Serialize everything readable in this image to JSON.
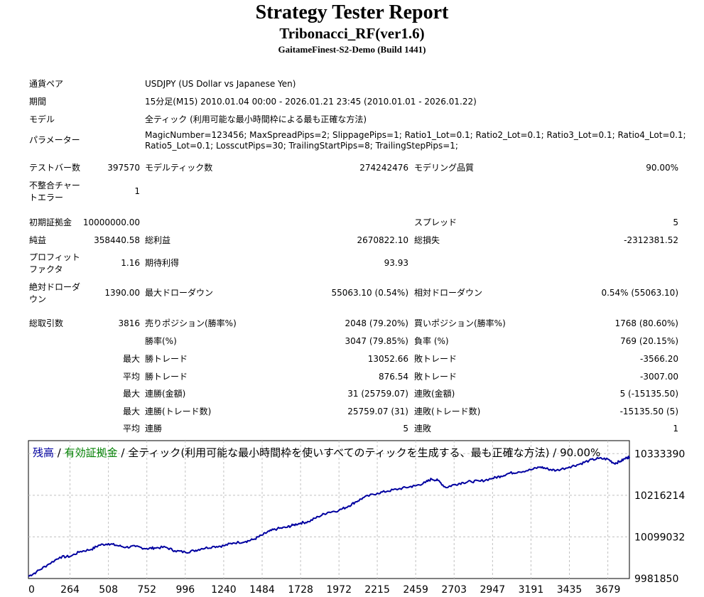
{
  "header": {
    "title": "Strategy Tester Report",
    "subtitle": "Tribonacci_RF(ver1.6)",
    "broker": "GaitameFinest-S2-Demo (Build 1441)"
  },
  "info": {
    "currency_label": "通貨ペア",
    "currency_value": "USDJPY (US Dollar vs Japanese Yen)",
    "period_label": "期間",
    "period_value": "15分足(M15) 2010.01.04 00:00 - 2026.01.21 23:45 (2010.01.01 - 2026.01.22)",
    "model_label": "モデル",
    "model_value": "全ティック (利用可能な最小時間枠による最も正確な方法)",
    "params_label": "パラメーター",
    "params_line1": "MagicNumber=123456; MaxSpreadPips=2; SlippagePips=1; Ratio1_Lot=0.1; Ratio2_Lot=0.1; Ratio3_Lot=0.1; Ratio4_Lot=0.1;",
    "params_line2": "Ratio5_Lot=0.1; LosscutPips=30; TrailingStartPips=8; TrailingStepPips=1;"
  },
  "stats": {
    "bars_label": "テストバー数",
    "bars_value": "397570",
    "ticks_label": "モデルティック数",
    "ticks_value": "274242476",
    "quality_label": "モデリング品質",
    "quality_value": "90.00%",
    "mismatch_label_1": "不整合チャー",
    "mismatch_label_2": "トエラー",
    "mismatch_value": "1",
    "deposit_label": "初期証拠金",
    "deposit_value": "10000000.00",
    "spread_label": "スプレッド",
    "spread_value": "5",
    "net_label": "純益",
    "net_value": "358440.58",
    "gross_profit_label": "総利益",
    "gross_profit_value": "2670822.10",
    "gross_loss_label": "総損失",
    "gross_loss_value": "-2312381.52",
    "pf_label_1": "プロフィット",
    "pf_label_2": "ファクタ",
    "pf_value": "1.16",
    "expected_label": "期待利得",
    "expected_value": "93.93",
    "abs_dd_label_1": "絶対ドローダ",
    "abs_dd_label_2": "ウン",
    "abs_dd_value": "1390.00",
    "max_dd_label": "最大ドローダウン",
    "max_dd_value": "55063.10 (0.54%)",
    "rel_dd_label": "相対ドローダウン",
    "rel_dd_value": "0.54% (55063.10)",
    "trades_label": "総取引数",
    "trades_value": "3816",
    "short_label": "売りポジション(勝率%)",
    "short_value": "2048 (79.20%)",
    "long_label": "買いポジション(勝率%)",
    "long_value": "1768 (80.60%)",
    "win_rate_label": "勝率(%)",
    "win_rate_value": "3047 (79.85%)",
    "loss_rate_label": "負率 (%)",
    "loss_rate_value": "769 (20.15%)",
    "max_label": "最大",
    "avg_label": "平均",
    "largest_win_label": "勝トレード",
    "largest_win_value": "13052.66",
    "largest_loss_label": "敗トレード",
    "largest_loss_value": "-3566.20",
    "avg_win_label": "勝トレード",
    "avg_win_value": "876.54",
    "avg_loss_label": "敗トレード",
    "avg_loss_value": "-3007.00",
    "max_cons_wins_label": "連勝(金額)",
    "max_cons_wins_value": "31 (25759.07)",
    "max_cons_losses_label": "連敗(金額)",
    "max_cons_losses_value": "5 (-15135.50)",
    "max_cons_profit_label": "連勝(トレード数)",
    "max_cons_profit_value": "25759.07 (31)",
    "max_cons_loss_label": "連敗(トレード数)",
    "max_cons_loss_value": "-15135.50 (5)",
    "avg_cons_wins_label": "連勝",
    "avg_cons_wins_value": "5",
    "avg_cons_losses_label": "連敗",
    "avg_cons_losses_value": "1"
  },
  "chart_legend": {
    "balance": "残高",
    "sep1": " / ",
    "equity": "有効証拠金",
    "rest": " / 全ティック(利用可能な最小時間枠を使いすべてのティックを生成する、最も正確な方法) / 90.00%"
  },
  "colors": {
    "balance": "#0000a0",
    "equity": "#008000",
    "grid": "#c0c0c0"
  },
  "chart_data": {
    "type": "line",
    "title": "",
    "xlabel": "",
    "ylabel": "",
    "x_ticks": [
      "0",
      "264",
      "508",
      "752",
      "996",
      "1240",
      "1484",
      "1728",
      "1972",
      "2215",
      "2459",
      "2703",
      "2947",
      "3191",
      "3435",
      "3679"
    ],
    "y_ticks": [
      "10333390",
      "10216214",
      "10099032",
      "9981850"
    ],
    "y_tick_values": [
      10333390,
      10216214,
      10099032,
      9981850
    ],
    "xlim": [
      0,
      3816
    ],
    "ylim": [
      9981850,
      10370000
    ],
    "grid": true,
    "series": [
      {
        "name": "残高",
        "x": [
          0,
          50,
          120,
          200,
          264,
          330,
          400,
          450,
          508,
          560,
          620,
          680,
          752,
          800,
          870,
          930,
          996,
          1050,
          1100,
          1180,
          1240,
          1300,
          1380,
          1430,
          1484,
          1530,
          1580,
          1640,
          1680,
          1728,
          1780,
          1840,
          1900,
          1972,
          2030,
          2080,
          2130,
          2215,
          2280,
          2350,
          2420,
          2459,
          2520,
          2560,
          2600,
          2650,
          2703,
          2760,
          2810,
          2870,
          2947,
          3000,
          3050,
          3110,
          3191,
          3250,
          3300,
          3350,
          3435,
          3500,
          3560,
          3620,
          3679,
          3720,
          3760,
          3800,
          3816
        ],
        "values": [
          9988000,
          10000000,
          10020000,
          10042000,
          10044000,
          10058000,
          10064000,
          10076000,
          10080000,
          10075000,
          10070000,
          10072000,
          10066000,
          10068000,
          10070000,
          10060000,
          10056000,
          10060000,
          10066000,
          10072000,
          10074000,
          10082000,
          10086000,
          10092000,
          10104000,
          10115000,
          10122000,
          10126000,
          10132000,
          10138000,
          10142000,
          10156000,
          10168000,
          10174000,
          10185000,
          10198000,
          10210000,
          10222000,
          10228000,
          10234000,
          10240000,
          10243000,
          10252000,
          10262000,
          10258000,
          10238000,
          10246000,
          10252000,
          10255000,
          10256000,
          10264000,
          10270000,
          10278000,
          10282000,
          10288000,
          10296000,
          10290000,
          10286000,
          10296000,
          10304000,
          10314000,
          10320000,
          10318000,
          10306000,
          10312000,
          10322000,
          10324000
        ]
      }
    ]
  }
}
